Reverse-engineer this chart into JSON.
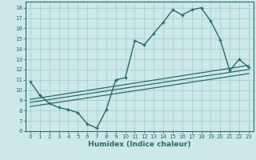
{
  "title": "",
  "xlabel": "Humidex (Indice chaleur)",
  "ylabel": "",
  "bg_color": "#cce8e8",
  "grid_color": "#aacfcf",
  "line_color": "#2a6b6b",
  "xlim": [
    -0.5,
    23.5
  ],
  "ylim": [
    6,
    18.6
  ],
  "yticks": [
    6,
    7,
    8,
    9,
    10,
    11,
    12,
    13,
    14,
    15,
    16,
    17,
    18
  ],
  "xticks": [
    0,
    1,
    2,
    3,
    4,
    5,
    6,
    7,
    8,
    9,
    10,
    11,
    12,
    13,
    14,
    15,
    16,
    17,
    18,
    19,
    20,
    21,
    22,
    23
  ],
  "line1_x": [
    0,
    1,
    2,
    3,
    4,
    5,
    6,
    7,
    8,
    9,
    10,
    11,
    12,
    13,
    14,
    15,
    16,
    17,
    18,
    19,
    20,
    21,
    22,
    23
  ],
  "line1_y": [
    10.8,
    9.5,
    8.7,
    8.3,
    8.1,
    7.8,
    6.7,
    6.3,
    8.1,
    11.0,
    11.2,
    14.8,
    14.4,
    15.5,
    16.6,
    17.8,
    17.3,
    17.8,
    18.0,
    16.7,
    14.9,
    11.9,
    13.0,
    12.2
  ],
  "line2_x": [
    0,
    23
  ],
  "line2_y": [
    8.8,
    12.0
  ],
  "line3_x": [
    0,
    23
  ],
  "line3_y": [
    8.4,
    11.6
  ],
  "line4_x": [
    0,
    23
  ],
  "line4_y": [
    9.1,
    12.4
  ],
  "xlabel_fontsize": 6.5,
  "tick_fontsize": 5.0,
  "line_width": 1.0,
  "marker_size": 3.5
}
